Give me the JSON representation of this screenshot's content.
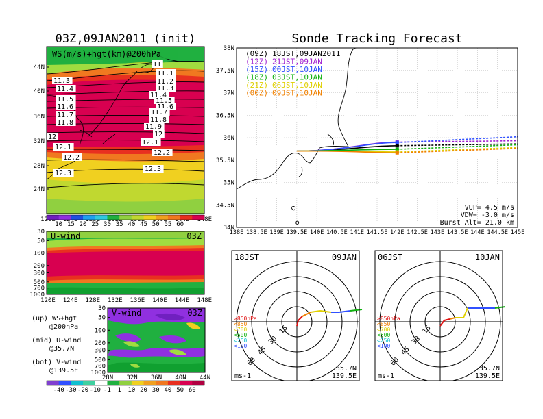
{
  "left": {
    "title": "03Z,09JAN2011 (init)",
    "map": {
      "label": "WS(m/s)+hgt(km)@200hPa",
      "lat_ticks": [
        "44N",
        "40N",
        "36N",
        "32N",
        "28N",
        "24N"
      ],
      "lon_ticks": [
        "120E",
        "124E",
        "128E",
        "132E",
        "136E",
        "140E",
        "144E",
        "148E"
      ],
      "contour_labels": [
        "11",
        "11.1",
        "11.2",
        "11.3",
        "11.3",
        "11.4",
        "11.4",
        "11.5",
        "11.5",
        "11.6",
        "11.6",
        "11.7",
        "11.7",
        "11.8",
        "11.8",
        "11.9",
        "12",
        "12",
        "12.1",
        "12.1",
        "12.2",
        "12.2",
        "12.3",
        "12.3"
      ],
      "colorbar": [
        "10",
        "15",
        "20",
        "25",
        "30",
        "35",
        "40",
        "45",
        "50",
        "55",
        "60"
      ]
    },
    "uwind": {
      "label": "U-wind",
      "time": "03Z",
      "y_ticks": [
        "30",
        "50",
        "100",
        "200",
        "300",
        "500",
        "700",
        "1000"
      ],
      "lon_ticks": [
        "120E",
        "124E",
        "128E",
        "132E",
        "136E",
        "140E",
        "144E",
        "148E"
      ]
    },
    "vwind": {
      "label": "V-wind",
      "time": "03Z",
      "y_ticks": [
        "30",
        "50",
        "100",
        "200",
        "300",
        "500",
        "700",
        "1000"
      ],
      "lat_ticks": [
        "28N",
        "32N",
        "36N",
        "40N",
        "44N"
      ],
      "colorbar": [
        "-40",
        "-30",
        "-20",
        "-10",
        "-1",
        "1",
        "10",
        "20",
        "30",
        "40",
        "50",
        "60"
      ]
    },
    "legend": [
      {
        "a": "(up) WS+hgt",
        "b": "@200hPa"
      },
      {
        "a": "(mid) U-wind",
        "b": "@35.7N"
      },
      {
        "a": "(bot) V-wind",
        "b": "@139.5E"
      }
    ]
  },
  "right": {
    "title": "Sonde Tracking Forecast",
    "tracks": [
      {
        "code": "(09Z)",
        "time": "18JST,09JAN2011",
        "color": "#000000"
      },
      {
        "code": "(12Z)",
        "time": "21JST,09JAN",
        "color": "#a020d0"
      },
      {
        "code": "(15Z)",
        "time": "00JST,10JAN",
        "color": "#3050ff"
      },
      {
        "code": "(18Z)",
        "time": "03JST,10JAN",
        "color": "#10b010"
      },
      {
        "code": "(21Z)",
        "time": "06JST,10JAN",
        "color": "#e0d000"
      },
      {
        "code": "(00Z)",
        "time": "09JST,10JAN",
        "color": "#f08000"
      }
    ],
    "lat_ticks": [
      "38N",
      "37.5N",
      "37N",
      "36.5N",
      "36N",
      "35.5N",
      "35N",
      "34.5N",
      "34N"
    ],
    "lon_ticks": [
      "138E",
      "138.5E",
      "139E",
      "139.5E",
      "140E",
      "140.5E",
      "141E",
      "141.5E",
      "142E",
      "142.5E",
      "143E",
      "143.5E",
      "144E",
      "144.5E",
      "145E"
    ],
    "info": [
      "VUP= 4.5 m/s",
      "VDW= -3.0 m/s",
      "Burst Alt= 21.0 km"
    ]
  },
  "hodographs": [
    {
      "jst": "18JST",
      "date": "09JAN",
      "rings": [
        "15",
        "30",
        "45",
        "60"
      ],
      "lat": "35.7N",
      "lon": "139.5E",
      "unit": "ms-1",
      "levels": [
        {
          "text": "≥850hPa",
          "color": "#e01010"
        },
        {
          "text": "<850",
          "color": "#f08000"
        },
        {
          "text": "<700",
          "color": "#e0d000"
        },
        {
          "text": "<500",
          "color": "#10b010"
        },
        {
          "text": "<250",
          "color": "#10c0d0"
        },
        {
          "text": "<100",
          "color": "#3050ff"
        }
      ]
    },
    {
      "jst": "06JST",
      "date": "10JAN",
      "rings": [
        "15",
        "30",
        "45",
        "60"
      ],
      "lat": "35.7N",
      "lon": "139.5E",
      "unit": "ms-1",
      "levels": [
        {
          "text": "≥850hPa",
          "color": "#e01010"
        },
        {
          "text": "<850",
          "color": "#f08000"
        },
        {
          "text": "<700",
          "color": "#e0d000"
        },
        {
          "text": "<500",
          "color": "#10b010"
        },
        {
          "text": "<250",
          "color": "#10c0d0"
        },
        {
          "text": "<100",
          "color": "#3050ff"
        }
      ]
    }
  ],
  "chart_data": [
    {
      "type": "heatmap",
      "title": "03Z,09JAN2011 (init)",
      "label": "WS(m/s)+hgt(km)@200hPa",
      "xlabel": "",
      "ylabel": "",
      "xlim": [
        "120E",
        "148E"
      ],
      "ylim": [
        "22N",
        "46N"
      ],
      "contour_levels_km": [
        11,
        11.1,
        11.2,
        11.3,
        11.4,
        11.5,
        11.6,
        11.7,
        11.8,
        11.9,
        12,
        12.1,
        12.2,
        12.3
      ],
      "colorbar_ms": [
        10,
        15,
        20,
        25,
        30,
        35,
        40,
        45,
        50,
        55,
        60
      ]
    },
    {
      "type": "heatmap",
      "label": "U-wind",
      "y_pressure_hPa": [
        30,
        50,
        100,
        200,
        300,
        500,
        700,
        1000
      ],
      "xlim": [
        "120E",
        "148E"
      ]
    },
    {
      "type": "heatmap",
      "label": "V-wind",
      "y_pressure_hPa": [
        30,
        50,
        100,
        200,
        300,
        500,
        700,
        1000
      ],
      "xlim": [
        "28N",
        "44N"
      ],
      "colorbar_ms": [
        -40,
        -30,
        -20,
        -10,
        -1,
        1,
        10,
        20,
        30,
        40,
        50,
        60
      ]
    },
    {
      "type": "line",
      "title": "Sonde Tracking Forecast",
      "xlim": [
        138,
        145
      ],
      "ylim": [
        34,
        38
      ],
      "launch": {
        "lon": 139.5,
        "lat": 35.7
      },
      "series": [
        {
          "name": "(09Z) 18JST,09JAN2011",
          "burst": {
            "lon": 142.0,
            "lat": 35.82
          },
          "end": {
            "lon": 145.0,
            "lat": 35.86
          }
        },
        {
          "name": "(12Z) 21JST,09JAN",
          "burst": {
            "lon": 142.0,
            "lat": 35.9
          },
          "end": {
            "lon": 145.0,
            "lat": 35.93
          }
        },
        {
          "name": "(15Z) 00JST,10JAN",
          "burst": {
            "lon": 142.0,
            "lat": 35.89
          },
          "end": {
            "lon": 145.0,
            "lat": 36.02
          }
        },
        {
          "name": "(18Z) 03JST,10JAN",
          "burst": {
            "lon": 142.0,
            "lat": 35.74
          },
          "end": {
            "lon": 145.0,
            "lat": 35.84
          }
        },
        {
          "name": "(21Z) 06JST,10JAN",
          "burst": {
            "lon": 142.0,
            "lat": 35.68
          },
          "end": {
            "lon": 145.0,
            "lat": 35.78
          }
        },
        {
          "name": "(00Z) 09JST,10JAN",
          "burst": {
            "lon": 142.0,
            "lat": 35.66
          },
          "end": {
            "lon": 145.0,
            "lat": 35.76
          }
        }
      ]
    }
  ]
}
